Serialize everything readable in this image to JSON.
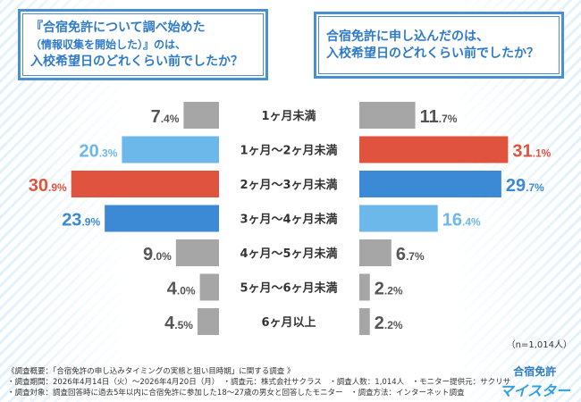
{
  "questions": {
    "left": [
      "『合宿免許について調べ始めた",
      "（情報収集を開始した）』のは、",
      "入校希望日のどれくらい前でしたか？"
    ],
    "right": [
      "合宿免許に申し込んだのは、",
      "入校希望日のどれくらい前でしたか？"
    ]
  },
  "chart_data": {
    "type": "bar",
    "orientation": "horizontal-butterfly",
    "categories": [
      "1ヶ月未満",
      "1ヶ月〜2ヶ月未満",
      "2ヶ月〜3ヶ月未満",
      "3ヶ月〜4ヶ月未満",
      "4ヶ月〜5ヶ月未満",
      "5ヶ月〜6ヶ月未満",
      "6ヶ月以上"
    ],
    "series": [
      {
        "values": [
          7.4,
          20.3,
          30.9,
          23.9,
          9.0,
          4.0,
          4.5
        ],
        "colors": [
          "#a6a6a6",
          "#6cb8ea",
          "#e0533f",
          "#3c8ad6",
          "#a6a6a6",
          "#a6a6a6",
          "#a6a6a6"
        ]
      },
      {
        "values": [
          11.7,
          31.1,
          29.7,
          16.4,
          6.7,
          2.2,
          2.2
        ],
        "colors": [
          "#a6a6a6",
          "#e0533f",
          "#3c8ad6",
          "#6cb8ea",
          "#a6a6a6",
          "#a6a6a6",
          "#a6a6a6"
        ]
      }
    ],
    "unit": "%"
  },
  "sample": "（n=1,014人）",
  "footer": [
    "《調査概要：「合宿免許の申し込みタイミングの実態と狙い目時期」に関する調査 》",
    "・調査期間：2026年4月14日（火）〜2026年4月20日（月）　・調査元：株式会社サクラス　・調査人数：1,014人　・モニター提供元：サクリサ",
    "・調査対象：調査回答時に過去5年以内に合宿免許に参加した18〜27歳の男女と回答したモニター　・調査方法：インターネット調査"
  ],
  "logo": {
    "line1": "合宿免許",
    "line2": "マイスター"
  }
}
